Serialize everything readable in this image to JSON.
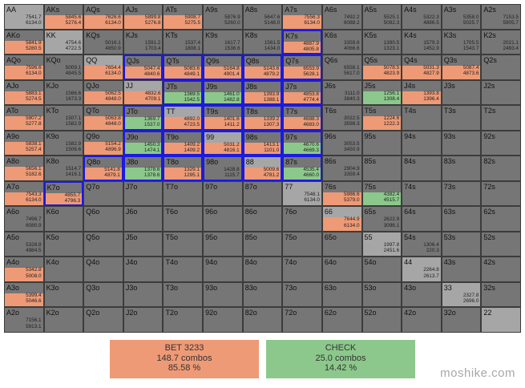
{
  "ranks": [
    "A",
    "K",
    "Q",
    "J",
    "T",
    "9",
    "8",
    "7",
    "6",
    "5",
    "4",
    "3",
    "2"
  ],
  "colors": {
    "bet": "#ee9a76",
    "check": "#8cc88c",
    "cell": "#767676",
    "pair": "#a6a6a6",
    "selected_border": "#1a1ae0"
  },
  "legend": {
    "bet": {
      "label": "BET 3233",
      "combos": "148.7 combos",
      "percent": "85.58 %"
    },
    "check": {
      "label": "CHECK",
      "combos": "25.0 combos",
      "percent": "14.42 %"
    }
  },
  "watermark": "moshike.com",
  "selected": [
    "K7s",
    "QJs",
    "QTs",
    "Q9s",
    "Q8s",
    "Q7s",
    "JTs",
    "J9s",
    "J8s",
    "J7s",
    "JTo",
    "TT",
    "T9s",
    "T8s",
    "T7s",
    "J9o",
    "T9o",
    "99",
    "98s",
    "97s",
    "Q8o",
    "J8o",
    "T8o",
    "98o",
    "88",
    "87s",
    "K7o"
  ],
  "cells": {
    "AA": {
      "bet": 0,
      "check": 0,
      "vals": [
        "7541.7",
        "6134.0"
      ]
    },
    "AKs": {
      "bet": 1,
      "check": 0,
      "vals": [
        "5845.6",
        "5276.4"
      ]
    },
    "AQs": {
      "bet": 1,
      "check": 0,
      "vals": [
        "7626.6",
        "6134.0"
      ]
    },
    "AJs": {
      "bet": 1,
      "check": 0,
      "vals": [
        "5899.8",
        "5276.8"
      ]
    },
    "ATs": {
      "bet": 1,
      "check": 0,
      "vals": [
        "5908.7",
        "5275.5"
      ]
    },
    "A9s": {
      "bet": 0,
      "check": 0,
      "vals": [
        "5876.9",
        "5260.0"
      ]
    },
    "A8s": {
      "bet": 0,
      "check": 0,
      "vals": [
        "5647.6",
        "5148.0"
      ]
    },
    "A7s": {
      "bet": 1,
      "check": 0,
      "vals": [
        "7556.3",
        "6134.0"
      ]
    },
    "A6s": {
      "bet": 0,
      "check": 0,
      "vals": [
        "7492.2",
        "6088.2"
      ]
    },
    "A5s": {
      "bet": 0,
      "check": 0,
      "vals": [
        "5525.1",
        "5082.3"
      ]
    },
    "A4s": {
      "bet": 0,
      "check": 0,
      "vals": [
        "5322.3",
        "4886.5"
      ]
    },
    "A3s": {
      "bet": 0,
      "check": 0,
      "vals": [
        "5358.0",
        "5025.7"
      ]
    },
    "A2s": {
      "bet": 0,
      "check": 0,
      "vals": [
        "7153.5",
        "5905.7"
      ]
    },
    "AKo": {
      "bet": 1,
      "check": 0,
      "vals": [
        "5841.9",
        "5280.5"
      ]
    },
    "KK": {
      "bet": 0,
      "check": 0,
      "vals": [
        "4754.6",
        "4722.5"
      ]
    },
    "KQs": {
      "bet": 0,
      "check": 0,
      "vals": [
        "5016.1",
        "4850.9"
      ]
    },
    "KJs": {
      "bet": 0,
      "check": 0,
      "vals": [
        "1591.2",
        "1703.4"
      ]
    },
    "KTs": {
      "bet": 0,
      "check": 0,
      "vals": [
        "1537.4",
        "1808.1"
      ]
    },
    "K9s": {
      "bet": 0,
      "check": 0,
      "vals": [
        "1617.7",
        "1536.6"
      ]
    },
    "K8s": {
      "bet": 0,
      "check": 0,
      "vals": [
        "1561.5",
        "1434.0"
      ]
    },
    "K7s": {
      "bet": 1,
      "check": 0,
      "vals": [
        "4887.9",
        "4805.8"
      ]
    },
    "K6s": {
      "bet": 0,
      "check": 0,
      "vals": [
        "3359.6",
        "4066.6"
      ]
    },
    "K5s": {
      "bet": 0,
      "check": 0,
      "vals": [
        "1390.5",
        "1323.1"
      ]
    },
    "K4s": {
      "bet": 0,
      "check": 0,
      "vals": [
        "1579.3",
        "1452.9"
      ]
    },
    "K3s": {
      "bet": 0,
      "check": 0,
      "vals": [
        "1705.5",
        "1543.7"
      ]
    },
    "K2s": {
      "bet": 0,
      "check": 0,
      "vals": [
        "2021.1",
        "2483.4"
      ]
    },
    "AQo": {
      "bet": 1,
      "check": 0,
      "vals": [
        "7596.6",
        "6134.0"
      ]
    },
    "KQo": {
      "bet": 0,
      "check": 0,
      "vals": [
        "5009.1",
        "4845.5"
      ]
    },
    "QQ": {
      "bet": 1,
      "check": 0,
      "vals": [
        "7654.4",
        "6134.0"
      ]
    },
    "QJs": {
      "bet": 1,
      "check": 0,
      "vals": [
        "5047.4",
        "4840.6"
      ]
    },
    "QTs": {
      "bet": 1,
      "check": 0,
      "vals": [
        "5083.6",
        "4849.1"
      ]
    },
    "Q9s": {
      "bet": 1,
      "check": 0,
      "vals": [
        "5164.8",
        "4901.4"
      ]
    },
    "Q8s": {
      "bet": 1,
      "check": 0,
      "vals": [
        "5143.6",
        "4879.2"
      ]
    },
    "Q7s": {
      "bet": 1,
      "check": 0,
      "vals": [
        "6553.9",
        "5628.1"
      ]
    },
    "Q6s": {
      "bet": 0,
      "check": 0,
      "vals": [
        "6558.1",
        "5617.0"
      ]
    },
    "Q5s": {
      "bet": 1,
      "check": 0,
      "vals": [
        "5078.5",
        "4823.9"
      ]
    },
    "Q4s": {
      "bet": 1,
      "check": 0,
      "vals": [
        "5031.3",
        "4827.9"
      ]
    },
    "Q3s": {
      "bet": 1,
      "check": 0,
      "vals": [
        "5087.4",
        "4873.6"
      ]
    },
    "Q2s": {
      "bet": 0,
      "check": 0,
      "vals": []
    },
    "AJo": {
      "bet": 1,
      "check": 0,
      "vals": [
        "5883.1",
        "5274.5"
      ]
    },
    "KJo": {
      "bet": 0,
      "check": 0,
      "vals": [
        "1566.6",
        "1673.3"
      ]
    },
    "QJo": {
      "bet": 1,
      "check": 0,
      "vals": [
        "5062.5",
        "4848.0"
      ]
    },
    "JJ": {
      "bet": 1,
      "check": 0,
      "vals": [
        "4832.6",
        "4709.1"
      ]
    },
    "JTs": {
      "bet": 0,
      "check": 1,
      "vals": [
        "1369.5",
        "1542.5"
      ]
    },
    "J9s": {
      "bet": 0,
      "check": 1,
      "vals": [
        "1461.0",
        "1482.8"
      ]
    },
    "J8s": {
      "bet": 1,
      "check": 0,
      "vals": [
        "1393.9",
        "1388.1"
      ]
    },
    "J7s": {
      "bet": 1,
      "check": 0,
      "vals": [
        "4853.8",
        "4774.4"
      ]
    },
    "J6s": {
      "bet": 0,
      "check": 0,
      "vals": [
        "3111.0",
        "3840.3"
      ]
    },
    "J5s": {
      "bet": 0,
      "check": 1,
      "vals": [
        "1256.1",
        "1308.4"
      ]
    },
    "J4s": {
      "bet": 1,
      "check": 0,
      "vals": [
        "1393.8",
        "1396.4"
      ]
    },
    "J3s": {
      "bet": 0,
      "check": 0,
      "vals": []
    },
    "J2s": {
      "bet": 0,
      "check": 0,
      "vals": []
    },
    "ATo": {
      "bet": 1,
      "check": 0,
      "vals": [
        "5907.2",
        "5277.8"
      ]
    },
    "KTo": {
      "bet": 0,
      "check": 0,
      "vals": [
        "1507.1",
        "1582.9"
      ]
    },
    "QTo": {
      "bet": 1,
      "check": 0,
      "vals": [
        "5063.8",
        "4848.0"
      ]
    },
    "JTo": {
      "bet": 0,
      "check": 1,
      "vals": [
        "1369.7",
        "1537.0"
      ]
    },
    "TT": {
      "bet": 1,
      "check": 0,
      "vals": [
        "4892.0",
        "4723.5"
      ]
    },
    "T9s": {
      "bet": 1,
      "check": 0,
      "vals": [
        "1401.6",
        "1411.2"
      ]
    },
    "T8s": {
      "bet": 1,
      "check": 0,
      "vals": [
        "1339.2",
        "1307.3"
      ]
    },
    "T7s": {
      "bet": 1,
      "check": 0,
      "vals": [
        "4688.3",
        "4683.0"
      ]
    },
    "T6s": {
      "bet": 0,
      "check": 0,
      "vals": [
        "3022.5",
        "3598.3"
      ]
    },
    "T5s": {
      "bet": 1,
      "check": 0,
      "vals": [
        "1224.6",
        "1222.3"
      ]
    },
    "T4s": {
      "bet": 0,
      "check": 0,
      "vals": []
    },
    "T3s": {
      "bet": 0,
      "check": 0,
      "vals": []
    },
    "T2s": {
      "bet": 0,
      "check": 0,
      "vals": []
    },
    "A9o": {
      "bet": 1,
      "check": 0,
      "vals": [
        "5838.1",
        "5257.4"
      ]
    },
    "K9o": {
      "bet": 0,
      "check": 0,
      "vals": [
        "1582.9",
        "1506.6"
      ]
    },
    "Q9o": {
      "bet": 1,
      "check": 0,
      "vals": [
        "5154.2",
        "4896.9"
      ]
    },
    "J9o": {
      "bet": 0,
      "check": 1,
      "vals": [
        "1450.3",
        "1474.1"
      ]
    },
    "T9o": {
      "bet": 1,
      "check": 0,
      "vals": [
        "1409.2",
        "1409.2"
      ]
    },
    "99": {
      "bet": 1,
      "check": 0,
      "vals": [
        "5031.2",
        "4816.1"
      ]
    },
    "98s": {
      "bet": 1,
      "check": 0,
      "vals": [
        "1413.1",
        "1101.0"
      ]
    },
    "97s": {
      "bet": 0,
      "check": 1,
      "vals": [
        "4670.6",
        "4669.3"
      ]
    },
    "96s": {
      "bet": 0,
      "check": 0,
      "vals": [
        "3053.5",
        "3450.9"
      ]
    },
    "95s": {
      "bet": 0,
      "check": 0,
      "vals": []
    },
    "94s": {
      "bet": 0,
      "check": 0,
      "vals": []
    },
    "93s": {
      "bet": 0,
      "check": 0,
      "vals": []
    },
    "92s": {
      "bet": 0,
      "check": 0,
      "vals": []
    },
    "A8o": {
      "bet": 1,
      "check": 0,
      "vals": [
        "5656.1",
        "5182.6"
      ]
    },
    "K8o": {
      "bet": 0,
      "check": 0,
      "vals": [
        "1514.7",
        "1416.1"
      ]
    },
    "Q8o": {
      "bet": 1,
      "check": 0,
      "vals": [
        "5141.8",
        "4879.1"
      ]
    },
    "J8o": {
      "bet": 0,
      "check": 1,
      "vals": [
        "1378.6",
        "1378.6"
      ]
    },
    "T8o": {
      "bet": 1,
      "check": 0,
      "vals": [
        "1329.1",
        "1295.1"
      ]
    },
    "98o": {
      "bet": 0,
      "check": 0,
      "vals": [
        "1428.8",
        "1115.7"
      ]
    },
    "88": {
      "bet": 1,
      "check": 0,
      "vals": [
        "5009.6",
        "4781.2"
      ]
    },
    "87s": {
      "bet": 0,
      "check": 1,
      "vals": [
        "4535.4",
        "4660.0"
      ]
    },
    "86s": {
      "bet": 0,
      "check": 0,
      "vals": [
        "2904.9",
        "3359.4"
      ]
    },
    "85s": {
      "bet": 0,
      "check": 0,
      "vals": []
    },
    "84s": {
      "bet": 0,
      "check": 0,
      "vals": []
    },
    "83s": {
      "bet": 0,
      "check": 0,
      "vals": []
    },
    "82s": {
      "bet": 0,
      "check": 0,
      "vals": []
    },
    "A7o": {
      "bet": 1,
      "check": 0,
      "vals": [
        "7543.3",
        "6134.0"
      ]
    },
    "K7o": {
      "bet": 1,
      "check": 0,
      "vals": [
        "4855.7",
        "4796.3"
      ]
    },
    "Q7o": {
      "bet": 0,
      "check": 0,
      "vals": []
    },
    "J7o": {
      "bet": 0,
      "check": 0,
      "vals": []
    },
    "T7o": {
      "bet": 0,
      "check": 0,
      "vals": []
    },
    "97o": {
      "bet": 0,
      "check": 0,
      "vals": []
    },
    "87o": {
      "bet": 0,
      "check": 0,
      "vals": []
    },
    "77": {
      "bet": 0,
      "check": 0,
      "vals": [
        "7548.1",
        "6134.0"
      ]
    },
    "76s": {
      "bet": 1,
      "check": 0,
      "vals": [
        "5986.6",
        "5379.0"
      ]
    },
    "75s": {
      "bet": 0,
      "check": 1,
      "vals": [
        "4382.4",
        "4515.7"
      ]
    },
    "74s": {
      "bet": 0,
      "check": 0,
      "vals": []
    },
    "73s": {
      "bet": 0,
      "check": 0,
      "vals": []
    },
    "72s": {
      "bet": 0,
      "check": 0,
      "vals": []
    },
    "A6o": {
      "bet": 0,
      "check": 0,
      "vals": [
        "7496.7",
        "6080.9"
      ]
    },
    "K6o": {
      "bet": 0,
      "check": 0,
      "vals": []
    },
    "Q6o": {
      "bet": 0,
      "check": 0,
      "vals": []
    },
    "J6o": {
      "bet": 0,
      "check": 0,
      "vals": []
    },
    "T6o": {
      "bet": 0,
      "check": 0,
      "vals": []
    },
    "96o": {
      "bet": 0,
      "check": 0,
      "vals": []
    },
    "86o": {
      "bet": 0,
      "check": 0,
      "vals": []
    },
    "76o": {
      "bet": 0,
      "check": 0,
      "vals": []
    },
    "66": {
      "bet": 1,
      "check": 0,
      "vals": [
        "7644.9",
        "6134.0"
      ]
    },
    "65s": {
      "bet": 0,
      "check": 0,
      "vals": [
        "2622.9",
        "3096.1"
      ]
    },
    "64s": {
      "bet": 0,
      "check": 0,
      "vals": []
    },
    "63s": {
      "bet": 0,
      "check": 0,
      "vals": []
    },
    "62s": {
      "bet": 0,
      "check": 0,
      "vals": []
    },
    "A5o": {
      "bet": 0,
      "check": 0,
      "vals": [
        "5328.8",
        "4984.5"
      ]
    },
    "K5o": {
      "bet": 0,
      "check": 0,
      "vals": []
    },
    "Q5o": {
      "bet": 0,
      "check": 0,
      "vals": []
    },
    "J5o": {
      "bet": 0,
      "check": 0,
      "vals": []
    },
    "T5o": {
      "bet": 0,
      "check": 0,
      "vals": []
    },
    "95o": {
      "bet": 0,
      "check": 0,
      "vals": []
    },
    "85o": {
      "bet": 0,
      "check": 0,
      "vals": []
    },
    "75o": {
      "bet": 0,
      "check": 0,
      "vals": []
    },
    "65o": {
      "bet": 0,
      "check": 0,
      "vals": []
    },
    "55": {
      "bet": 0,
      "check": 0,
      "vals": [
        "1997.8",
        "2451.6"
      ]
    },
    "54s": {
      "bet": 0,
      "check": 0,
      "vals": [
        "1306.4",
        "220.3"
      ]
    },
    "53s": {
      "bet": 0,
      "check": 0,
      "vals": []
    },
    "52s": {
      "bet": 0,
      "check": 0,
      "vals": []
    },
    "A4o": {
      "bet": 1,
      "check": 0,
      "vals": [
        "5342.8",
        "5008.0"
      ]
    },
    "K4o": {
      "bet": 0,
      "check": 0,
      "vals": []
    },
    "Q4o": {
      "bet": 0,
      "check": 0,
      "vals": []
    },
    "J4o": {
      "bet": 0,
      "check": 0,
      "vals": []
    },
    "T4o": {
      "bet": 0,
      "check": 0,
      "vals": []
    },
    "94o": {
      "bet": 0,
      "check": 0,
      "vals": []
    },
    "84o": {
      "bet": 0,
      "check": 0,
      "vals": []
    },
    "74o": {
      "bet": 0,
      "check": 0,
      "vals": []
    },
    "64o": {
      "bet": 0,
      "check": 0,
      "vals": []
    },
    "54o": {
      "bet": 0,
      "check": 0,
      "vals": []
    },
    "44": {
      "bet": 0,
      "check": 0,
      "vals": [
        "2264.8",
        "2613.7"
      ]
    },
    "43s": {
      "bet": 0,
      "check": 0,
      "vals": []
    },
    "42s": {
      "bet": 0,
      "check": 0,
      "vals": []
    },
    "A3o": {
      "bet": 1,
      "check": 0,
      "vals": [
        "5399.4",
        "5046.6"
      ]
    },
    "K3o": {
      "bet": 0,
      "check": 0,
      "vals": []
    },
    "Q3o": {
      "bet": 0,
      "check": 0,
      "vals": []
    },
    "J3o": {
      "bet": 0,
      "check": 0,
      "vals": []
    },
    "T3o": {
      "bet": 0,
      "check": 0,
      "vals": []
    },
    "93o": {
      "bet": 0,
      "check": 0,
      "vals": []
    },
    "83o": {
      "bet": 0,
      "check": 0,
      "vals": []
    },
    "73o": {
      "bet": 0,
      "check": 0,
      "vals": []
    },
    "63o": {
      "bet": 0,
      "check": 0,
      "vals": []
    },
    "53o": {
      "bet": 0,
      "check": 0,
      "vals": []
    },
    "43o": {
      "bet": 0,
      "check": 0,
      "vals": []
    },
    "33": {
      "bet": 0,
      "check": 0,
      "vals": [
        "2327.8",
        "2696.0"
      ]
    },
    "32s": {
      "bet": 0,
      "check": 0,
      "vals": []
    },
    "A2o": {
      "bet": 0,
      "check": 0,
      "vals": [
        "7156.1",
        "5913.1"
      ]
    },
    "K2o": {
      "bet": 0,
      "check": 0,
      "vals": []
    },
    "Q2o": {
      "bet": 0,
      "check": 0,
      "vals": []
    },
    "J2o": {
      "bet": 0,
      "check": 0,
      "vals": []
    },
    "T2o": {
      "bet": 0,
      "check": 0,
      "vals": []
    },
    "92o": {
      "bet": 0,
      "check": 0,
      "vals": []
    },
    "82o": {
      "bet": 0,
      "check": 0,
      "vals": []
    },
    "72o": {
      "bet": 0,
      "check": 0,
      "vals": []
    },
    "62o": {
      "bet": 0,
      "check": 0,
      "vals": []
    },
    "52o": {
      "bet": 0,
      "check": 0,
      "vals": []
    },
    "42o": {
      "bet": 0,
      "check": 0,
      "vals": []
    },
    "32o": {
      "bet": 0,
      "check": 0,
      "vals": []
    },
    "22": {
      "bet": 0,
      "check": 0,
      "vals": []
    }
  }
}
